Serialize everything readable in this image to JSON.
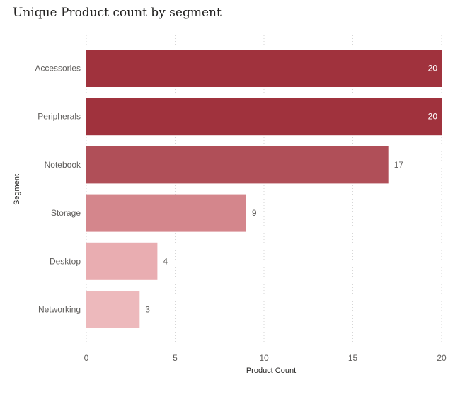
{
  "chart_data": {
    "type": "bar",
    "orientation": "horizontal",
    "title": "Unique Product count by segment",
    "xlabel": "Product Count",
    "ylabel": "Segment",
    "categories": [
      "Accessories",
      "Peripherals",
      "Notebook",
      "Storage",
      "Desktop",
      "Networking"
    ],
    "values": [
      20,
      20,
      17,
      9,
      4,
      3
    ],
    "xlim": [
      0,
      20
    ],
    "xticks": [
      0,
      5,
      10,
      15,
      20
    ],
    "grid": "vertical-dotted",
    "colors": [
      "#a0323d",
      "#a0323d",
      "#b04f58",
      "#d4868c",
      "#e9adb1",
      "#edb9bc"
    ]
  }
}
